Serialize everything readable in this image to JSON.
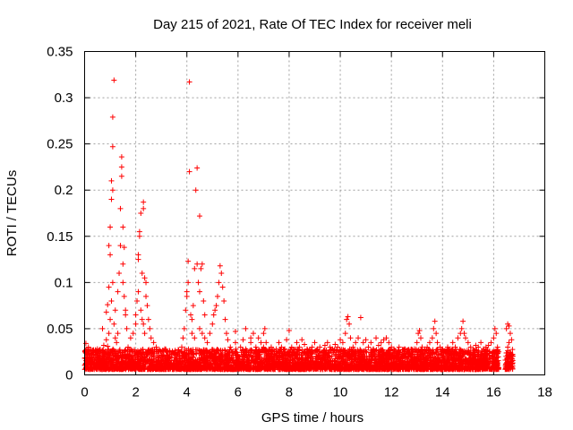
{
  "chart_data": {
    "type": "scatter",
    "title": "Day 215 of 2021, Rate Of TEC Index for receiver meli",
    "xlabel": "GPS time / hours",
    "ylabel": "ROTI / TECUs",
    "xlim": [
      0,
      18
    ],
    "ylim": [
      0,
      0.35
    ],
    "x_ticks": [
      0,
      2,
      4,
      6,
      8,
      10,
      12,
      14,
      16,
      18
    ],
    "y_ticks": [
      0,
      0.05,
      0.1,
      0.15,
      0.2,
      0.25,
      0.3,
      0.35
    ],
    "x_tick_labels": [
      "0",
      "2",
      "4",
      "6",
      "8",
      "10",
      "12",
      "14",
      "16",
      "18"
    ],
    "y_tick_labels": [
      "0",
      "0.05",
      "0.1",
      "0.15",
      "0.2",
      "0.25",
      "0.3",
      "0.35"
    ],
    "grid": true,
    "marker": "plus",
    "color": "#ff0000",
    "series": [
      {
        "name": "ROTI",
        "points": [
          [
            0.0,
            0.018
          ],
          [
            0.1,
            0.025
          ],
          [
            0.2,
            0.015
          ],
          [
            0.3,
            0.022
          ],
          [
            0.4,
            0.012
          ],
          [
            0.5,
            0.028
          ],
          [
            0.6,
            0.02
          ],
          [
            0.7,
            0.016
          ],
          [
            0.8,
            0.024
          ],
          [
            0.9,
            0.031
          ],
          [
            0.05,
            0.034
          ],
          [
            0.15,
            0.03
          ],
          [
            0.35,
            0.027
          ],
          [
            0.55,
            0.014
          ],
          [
            0.75,
            0.032
          ],
          [
            0.85,
            0.038
          ],
          [
            0.95,
            0.045
          ],
          [
            0.7,
            0.05
          ],
          [
            0.85,
            0.068
          ],
          [
            0.9,
            0.076
          ],
          [
            0.95,
            0.095
          ],
          [
            1.0,
            0.13
          ],
          [
            1.0,
            0.16
          ],
          [
            0.95,
            0.14
          ],
          [
            1.05,
            0.19
          ],
          [
            1.05,
            0.21
          ],
          [
            1.1,
            0.2
          ],
          [
            1.1,
            0.247
          ],
          [
            1.1,
            0.279
          ],
          [
            1.15,
            0.319
          ],
          [
            1.0,
            0.06
          ],
          [
            1.05,
            0.08
          ],
          [
            1.1,
            0.1
          ],
          [
            1.15,
            0.055
          ],
          [
            1.2,
            0.04
          ],
          [
            1.25,
            0.035
          ],
          [
            1.3,
            0.045
          ],
          [
            1.2,
            0.07
          ],
          [
            1.3,
            0.09
          ],
          [
            1.35,
            0.11
          ],
          [
            1.4,
            0.14
          ],
          [
            1.4,
            0.18
          ],
          [
            1.45,
            0.215
          ],
          [
            1.45,
            0.225
          ],
          [
            1.45,
            0.236
          ],
          [
            1.5,
            0.16
          ],
          [
            1.55,
            0.138
          ],
          [
            1.5,
            0.12
          ],
          [
            1.5,
            0.1
          ],
          [
            1.55,
            0.085
          ],
          [
            1.6,
            0.07
          ],
          [
            1.6,
            0.065
          ],
          [
            1.65,
            0.05
          ],
          [
            1.7,
            0.03
          ],
          [
            1.8,
            0.04
          ],
          [
            1.9,
            0.045
          ],
          [
            2.0,
            0.055
          ],
          [
            2.0,
            0.065
          ],
          [
            2.05,
            0.08
          ],
          [
            2.1,
            0.125
          ],
          [
            2.1,
            0.13
          ],
          [
            2.15,
            0.155
          ],
          [
            2.15,
            0.15
          ],
          [
            2.2,
            0.175
          ],
          [
            2.25,
            0.11
          ],
          [
            2.3,
            0.187
          ],
          [
            2.3,
            0.18
          ],
          [
            2.35,
            0.105
          ],
          [
            2.4,
            0.1
          ],
          [
            2.4,
            0.085
          ],
          [
            2.45,
            0.075
          ],
          [
            2.5,
            0.06
          ],
          [
            2.55,
            0.05
          ],
          [
            2.6,
            0.04
          ],
          [
            2.7,
            0.035
          ],
          [
            2.8,
            0.03
          ],
          [
            2.1,
            0.09
          ],
          [
            2.2,
            0.07
          ],
          [
            2.25,
            0.06
          ],
          [
            2.3,
            0.055
          ],
          [
            2.35,
            0.045
          ],
          [
            2.9,
            0.025
          ],
          [
            3.0,
            0.02
          ],
          [
            3.2,
            0.018
          ],
          [
            3.4,
            0.022
          ],
          [
            3.5,
            0.016
          ],
          [
            3.6,
            0.02
          ],
          [
            3.7,
            0.025
          ],
          [
            3.8,
            0.03
          ],
          [
            3.85,
            0.04
          ],
          [
            3.9,
            0.05
          ],
          [
            3.95,
            0.07
          ],
          [
            4.0,
            0.085
          ],
          [
            4.0,
            0.09
          ],
          [
            4.05,
            0.1
          ],
          [
            4.05,
            0.123
          ],
          [
            4.1,
            0.22
          ],
          [
            4.1,
            0.317
          ],
          [
            4.15,
            0.065
          ],
          [
            4.2,
            0.06
          ],
          [
            4.25,
            0.075
          ],
          [
            4.3,
            0.115
          ],
          [
            4.35,
            0.2
          ],
          [
            4.4,
            0.224
          ],
          [
            4.4,
            0.12
          ],
          [
            4.45,
            0.1
          ],
          [
            4.5,
            0.172
          ],
          [
            4.5,
            0.09
          ],
          [
            4.55,
            0.115
          ],
          [
            4.6,
            0.12
          ],
          [
            4.65,
            0.08
          ],
          [
            4.7,
            0.065
          ],
          [
            4.2,
            0.045
          ],
          [
            4.3,
            0.04
          ],
          [
            4.5,
            0.05
          ],
          [
            4.6,
            0.045
          ],
          [
            4.7,
            0.04
          ],
          [
            4.8,
            0.035
          ],
          [
            4.9,
            0.045
          ],
          [
            5.0,
            0.055
          ],
          [
            5.05,
            0.065
          ],
          [
            5.1,
            0.07
          ],
          [
            5.15,
            0.075
          ],
          [
            5.2,
            0.085
          ],
          [
            5.25,
            0.1
          ],
          [
            5.3,
            0.118
          ],
          [
            5.35,
            0.11
          ],
          [
            5.4,
            0.095
          ],
          [
            5.45,
            0.08
          ],
          [
            5.5,
            0.06
          ],
          [
            5.55,
            0.045
          ],
          [
            5.6,
            0.038
          ],
          [
            5.7,
            0.03
          ],
          [
            5.8,
            0.025
          ],
          [
            5.9,
            0.035
          ],
          [
            6.0,
            0.02
          ],
          [
            6.1,
            0.03
          ],
          [
            6.2,
            0.038
          ],
          [
            6.3,
            0.028
          ],
          [
            6.4,
            0.022
          ],
          [
            6.5,
            0.04
          ],
          [
            6.6,
            0.045
          ],
          [
            6.7,
            0.03
          ],
          [
            6.8,
            0.025
          ],
          [
            6.9,
            0.035
          ],
          [
            7.0,
            0.045
          ],
          [
            7.05,
            0.05
          ],
          [
            7.1,
            0.035
          ],
          [
            7.2,
            0.025
          ],
          [
            7.3,
            0.03
          ],
          [
            5.9,
            0.047
          ],
          [
            6.3,
            0.05
          ],
          [
            6.5,
            0.035
          ],
          [
            6.8,
            0.04
          ],
          [
            7.0,
            0.03
          ],
          [
            7.4,
            0.02
          ],
          [
            7.5,
            0.028
          ],
          [
            7.6,
            0.035
          ],
          [
            7.7,
            0.03
          ],
          [
            7.8,
            0.022
          ],
          [
            7.9,
            0.038
          ],
          [
            8.0,
            0.048
          ],
          [
            8.1,
            0.03
          ],
          [
            8.2,
            0.025
          ],
          [
            8.3,
            0.035
          ],
          [
            8.4,
            0.03
          ],
          [
            8.5,
            0.038
          ],
          [
            8.6,
            0.033
          ],
          [
            8.7,
            0.028
          ],
          [
            8.8,
            0.022
          ],
          [
            8.9,
            0.03
          ],
          [
            9.0,
            0.035
          ],
          [
            9.1,
            0.028
          ],
          [
            9.2,
            0.03
          ],
          [
            9.3,
            0.025
          ],
          [
            9.4,
            0.032
          ],
          [
            9.5,
            0.035
          ],
          [
            9.6,
            0.03
          ],
          [
            9.7,
            0.028
          ],
          [
            9.8,
            0.033
          ],
          [
            9.9,
            0.03
          ],
          [
            10.0,
            0.038
          ],
          [
            10.1,
            0.035
          ],
          [
            10.2,
            0.045
          ],
          [
            10.25,
            0.06
          ],
          [
            10.3,
            0.063
          ],
          [
            10.35,
            0.055
          ],
          [
            10.4,
            0.04
          ],
          [
            10.5,
            0.03
          ],
          [
            10.6,
            0.035
          ],
          [
            10.7,
            0.04
          ],
          [
            10.8,
            0.062
          ],
          [
            10.9,
            0.035
          ],
          [
            11.0,
            0.038
          ],
          [
            11.1,
            0.03
          ],
          [
            11.2,
            0.035
          ],
          [
            11.3,
            0.028
          ],
          [
            11.4,
            0.04
          ],
          [
            11.5,
            0.032
          ],
          [
            11.6,
            0.035
          ],
          [
            11.7,
            0.038
          ],
          [
            11.8,
            0.04
          ],
          [
            11.9,
            0.035
          ],
          [
            12.0,
            0.03
          ],
          [
            12.1,
            0.028
          ],
          [
            12.2,
            0.025
          ],
          [
            12.3,
            0.03
          ],
          [
            12.4,
            0.02
          ],
          [
            12.5,
            0.022
          ],
          [
            12.6,
            0.018
          ],
          [
            12.7,
            0.025
          ],
          [
            12.8,
            0.02
          ],
          [
            12.9,
            0.028
          ],
          [
            13.0,
            0.035
          ],
          [
            13.05,
            0.045
          ],
          [
            13.1,
            0.048
          ],
          [
            13.15,
            0.04
          ],
          [
            13.2,
            0.03
          ],
          [
            13.3,
            0.025
          ],
          [
            13.4,
            0.03
          ],
          [
            13.5,
            0.035
          ],
          [
            13.6,
            0.04
          ],
          [
            13.65,
            0.05
          ],
          [
            13.7,
            0.058
          ],
          [
            13.75,
            0.045
          ],
          [
            13.8,
            0.035
          ],
          [
            13.9,
            0.03
          ],
          [
            14.0,
            0.028
          ],
          [
            14.1,
            0.025
          ],
          [
            14.2,
            0.03
          ],
          [
            14.3,
            0.025
          ],
          [
            14.4,
            0.035
          ],
          [
            14.5,
            0.03
          ],
          [
            14.6,
            0.04
          ],
          [
            14.7,
            0.045
          ],
          [
            14.75,
            0.05
          ],
          [
            14.8,
            0.058
          ],
          [
            14.85,
            0.045
          ],
          [
            14.9,
            0.04
          ],
          [
            15.0,
            0.035
          ],
          [
            15.1,
            0.03
          ],
          [
            15.2,
            0.028
          ],
          [
            15.3,
            0.032
          ],
          [
            15.4,
            0.03
          ],
          [
            15.5,
            0.035
          ],
          [
            15.6,
            0.028
          ],
          [
            15.7,
            0.03
          ],
          [
            15.8,
            0.032
          ],
          [
            15.9,
            0.035
          ],
          [
            16.0,
            0.04
          ],
          [
            16.05,
            0.05
          ],
          [
            16.1,
            0.045
          ],
          [
            16.15,
            0.03
          ],
          [
            16.2,
            0.025
          ],
          [
            16.5,
            0.05
          ],
          [
            16.55,
            0.055
          ],
          [
            16.6,
            0.053
          ],
          [
            16.65,
            0.045
          ],
          [
            16.6,
            0.035
          ],
          [
            16.7,
            0.038
          ],
          [
            16.55,
            0.03
          ],
          [
            16.6,
            0.022
          ],
          [
            16.65,
            0.015
          ],
          [
            16.7,
            0.012
          ],
          [
            16.55,
            0.01
          ],
          [
            16.6,
            0.008
          ],
          [
            16.7,
            0.018
          ]
        ]
      }
    ]
  }
}
